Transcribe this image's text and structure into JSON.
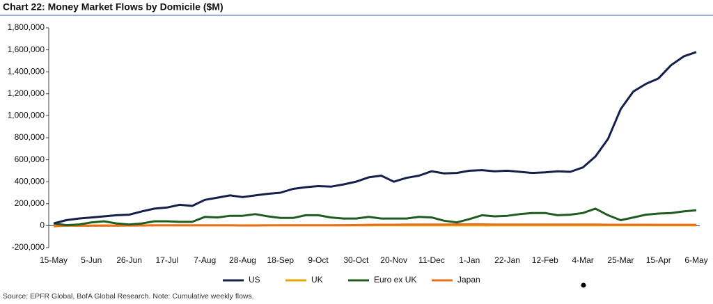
{
  "chart_data": {
    "type": "line",
    "title": "Chart 22: Money Market Flows by Domicile ($M)",
    "source": "Source: EPFR Global, BofA Global Research. Note: Cumulative weekly flows.",
    "categories": [
      "15-May",
      null,
      null,
      "5-Jun",
      null,
      null,
      "26-Jun",
      null,
      null,
      "17-Jul",
      null,
      null,
      "7-Aug",
      null,
      null,
      "28-Aug",
      null,
      null,
      "18-Sep",
      null,
      null,
      "9-Oct",
      null,
      null,
      "30-Oct",
      null,
      null,
      "20-Nov",
      null,
      null,
      "11-Dec",
      null,
      null,
      "1-Jan",
      null,
      null,
      "22-Jan",
      null,
      null,
      "12-Feb",
      null,
      null,
      "4-Mar",
      null,
      null,
      "25-Mar",
      null,
      null,
      "15-Apr",
      null,
      null,
      "6-May"
    ],
    "ylim": [
      -200000,
      1800000
    ],
    "yticks": [
      {
        "value": -200000,
        "label": "-200,000"
      },
      0,
      {
        "value": 200000,
        "label": "200,000"
      },
      {
        "value": 400000,
        "label": "400,000"
      },
      {
        "value": 600000,
        "label": "600,000"
      },
      {
        "value": 800000,
        "label": "800,000"
      },
      {
        "value": 1000000,
        "label": "1,000,000"
      },
      {
        "value": 1200000,
        "label": "1,200,000"
      },
      {
        "value": 1400000,
        "label": "1,400,000"
      },
      {
        "value": 1600000,
        "label": "1,600,000"
      },
      {
        "value": 1800000,
        "label": "1,800,000"
      }
    ],
    "grid": false,
    "legend": "bottom",
    "series": [
      {
        "name": "US",
        "color": "#14204a",
        "values": [
          20000,
          50000,
          65000,
          75000,
          85000,
          95000,
          100000,
          130000,
          155000,
          165000,
          190000,
          180000,
          235000,
          255000,
          275000,
          260000,
          275000,
          290000,
          300000,
          335000,
          350000,
          360000,
          355000,
          375000,
          400000,
          440000,
          455000,
          400000,
          435000,
          455000,
          495000,
          475000,
          480000,
          500000,
          505000,
          495000,
          500000,
          490000,
          480000,
          485000,
          495000,
          490000,
          530000,
          630000,
          790000,
          1060000,
          1220000,
          1290000,
          1340000,
          1460000,
          1540000,
          1580000
        ]
      },
      {
        "name": "UK",
        "color": "#e0a800",
        "values": [
          0,
          0,
          0,
          0,
          2000,
          2000,
          2000,
          3000,
          3000,
          3000,
          3000,
          3000,
          3000,
          3000,
          3000,
          3000,
          3000,
          3000,
          3000,
          3000,
          3000,
          3000,
          3000,
          3000,
          3000,
          3000,
          3000,
          3000,
          3000,
          3000,
          3000,
          3000,
          3000,
          3000,
          3000,
          3000,
          3000,
          3000,
          3000,
          3000,
          3000,
          3000,
          3000,
          3000,
          3000,
          3000,
          3000,
          3000,
          3000,
          3000,
          3000,
          3000
        ]
      },
      {
        "name": "Euro ex UK",
        "color": "#1f5c1f",
        "values": [
          20000,
          5000,
          10000,
          30000,
          40000,
          20000,
          10000,
          20000,
          40000,
          40000,
          35000,
          35000,
          80000,
          75000,
          90000,
          90000,
          105000,
          85000,
          70000,
          70000,
          95000,
          95000,
          75000,
          65000,
          65000,
          80000,
          65000,
          65000,
          65000,
          80000,
          75000,
          45000,
          30000,
          60000,
          95000,
          85000,
          90000,
          105000,
          115000,
          115000,
          95000,
          100000,
          115000,
          155000,
          95000,
          50000,
          75000,
          100000,
          110000,
          115000,
          130000,
          140000
        ]
      },
      {
        "name": "Japan",
        "color": "#e8701a",
        "values": [
          -5000,
          0,
          0,
          0,
          0,
          0,
          2000,
          2000,
          3000,
          3000,
          3000,
          3000,
          3000,
          3000,
          3000,
          2000,
          2000,
          3000,
          4000,
          4000,
          4000,
          4000,
          4000,
          5000,
          6000,
          8000,
          9000,
          9000,
          10000,
          10000,
          11000,
          11000,
          12000,
          12000,
          12000,
          11000,
          11000,
          11000,
          11000,
          11000,
          11000,
          11000,
          11000,
          10000,
          9000,
          9000,
          9000,
          9000,
          8000,
          8000,
          8000,
          8000
        ]
      }
    ]
  }
}
